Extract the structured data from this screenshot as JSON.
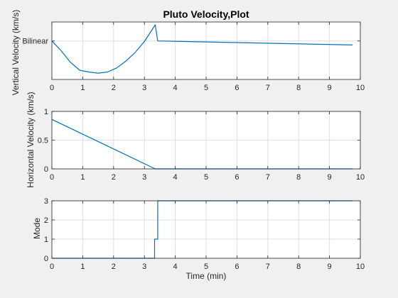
{
  "figure": {
    "background": "#f0f0f0",
    "axes_background": "#ffffff",
    "grid_color": "#dfdfdf",
    "line_color": "#0072bd"
  },
  "chart_data": [
    {
      "type": "line",
      "title": "Pluto Velocity,Plot",
      "xlabel": "",
      "ylabel": "Vertical Velocity (km/s)",
      "xlim": [
        0,
        10
      ],
      "ylim": [
        0,
        1
      ],
      "xticks": [
        "0",
        "1",
        "2",
        "3",
        "4",
        "5",
        "6",
        "7",
        "8",
        "9",
        "10"
      ],
      "yticks": [
        {
          "value": 0.67,
          "label": "Bilinear"
        }
      ],
      "grid": true,
      "series": [
        {
          "x": [
            0,
            0.3,
            0.6,
            0.9,
            1.2,
            1.5,
            1.8,
            2.1,
            2.4,
            2.7,
            3.0,
            3.35,
            3.43,
            9.75
          ],
          "y": [
            0.67,
            0.5,
            0.3,
            0.16,
            0.13,
            0.11,
            0.13,
            0.2,
            0.32,
            0.47,
            0.66,
            0.95,
            0.67,
            0.6
          ]
        }
      ]
    },
    {
      "type": "line",
      "title": "",
      "xlabel": "",
      "ylabel": "Horizontal Velocity (km/s)",
      "xlim": [
        0,
        10
      ],
      "ylim": [
        0,
        1
      ],
      "xticks": [
        "0",
        "1",
        "2",
        "3",
        "4",
        "5",
        "6",
        "7",
        "8",
        "9",
        "10"
      ],
      "yticks": [
        {
          "value": 0,
          "label": "0"
        },
        {
          "value": 0.5,
          "label": "0.5"
        },
        {
          "value": 1,
          "label": "1"
        }
      ],
      "grid": true,
      "series": [
        {
          "x": [
            0,
            3.35,
            3.45,
            9.75
          ],
          "y": [
            0.86,
            0.0,
            0.0,
            0.0
          ]
        }
      ]
    },
    {
      "type": "line",
      "title": "",
      "xlabel": "Time (min)",
      "ylabel": "Mode",
      "xlim": [
        0,
        10
      ],
      "ylim": [
        0,
        3
      ],
      "xticks": [
        "0",
        "1",
        "2",
        "3",
        "4",
        "5",
        "6",
        "7",
        "8",
        "9",
        "10"
      ],
      "yticks": [
        {
          "value": 0,
          "label": "0"
        },
        {
          "value": 1,
          "label": "1"
        },
        {
          "value": 2,
          "label": "2"
        },
        {
          "value": 3,
          "label": "3"
        }
      ],
      "grid": true,
      "series": [
        {
          "x": [
            0,
            3.33,
            3.33,
            3.38,
            3.38,
            3.43,
            3.43,
            9.75
          ],
          "y": [
            0,
            0,
            1,
            1,
            1,
            1,
            3,
            3
          ]
        }
      ]
    }
  ]
}
